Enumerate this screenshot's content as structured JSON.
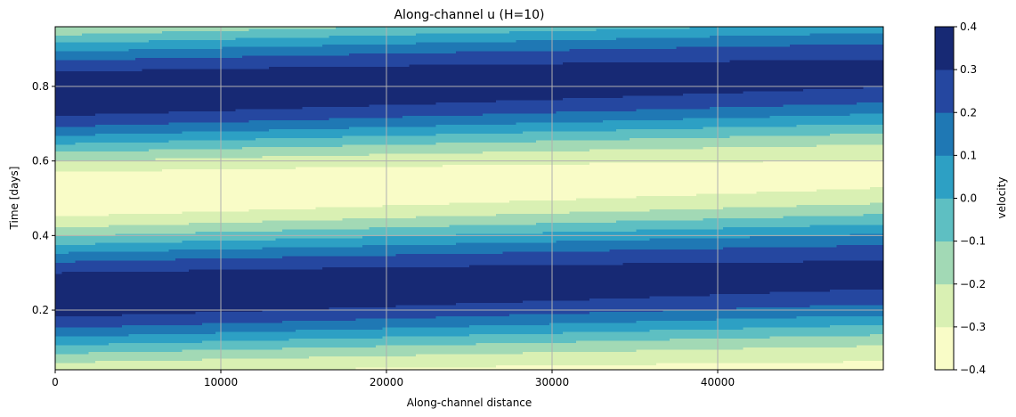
{
  "chart_data": {
    "type": "heatmap",
    "title": "Along-channel u (H=10)",
    "xlabel": "Along-channel distance",
    "ylabel": "Time [days]",
    "colorbar_label": "velocity",
    "xlim": [
      0,
      50000
    ],
    "ylim": [
      0.04,
      0.96
    ],
    "xticks": [
      0,
      10000,
      20000,
      30000,
      40000
    ],
    "xtick_labels": [
      "0",
      "10000",
      "20000",
      "30000",
      "40000"
    ],
    "yticks": [
      0.2,
      0.4,
      0.6,
      0.8
    ],
    "ytick_labels": [
      "0.2",
      "0.4",
      "0.6",
      "0.8"
    ],
    "grid": true,
    "levels": [
      -0.4,
      -0.3,
      -0.2,
      -0.1,
      0.0,
      0.1,
      0.2,
      0.3,
      0.4
    ],
    "level_labels": [
      "−0.4",
      "−0.3",
      "−0.2",
      "−0.1",
      "0.0",
      "0.1",
      "0.2",
      "0.3",
      "0.4"
    ],
    "colors": [
      "#f9fcc7",
      "#d9f0b3",
      "#a2d9b5",
      "#5ebfc2",
      "#2da0c4",
      "#1f78b4",
      "#2547a0",
      "#172974"
    ],
    "field": {
      "amplitude_x0": 0.39,
      "amplitude_x_end": 0.33,
      "period_days": 0.54,
      "phase_speed_days_per_m": 1.1e-06,
      "max_time_day_1": 0.25,
      "max_time_day_2": 0.78
    }
  }
}
